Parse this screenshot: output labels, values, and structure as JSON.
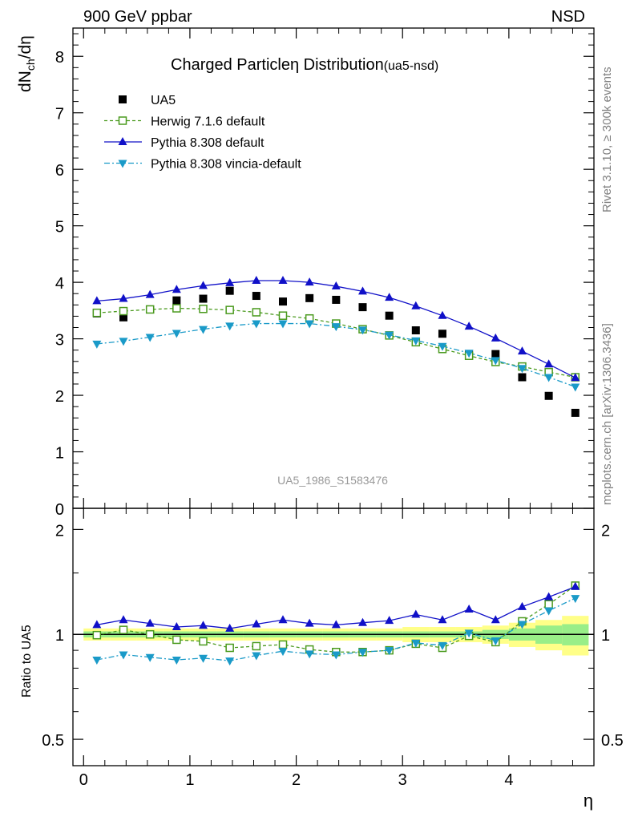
{
  "header": {
    "left": "900 GeV ppbar",
    "right": "NSD"
  },
  "side_labels": {
    "rivet": "Rivet 3.1.10, ≥ 300k events",
    "mcplots": "mcplots.cern.ch [arXiv:1306.3436]"
  },
  "chart_data": [
    {
      "type": "scatter",
      "title_main": "Charged Particle",
      "title_symbol": "η",
      "title_rest": " Distribution",
      "title_tag": "(ua5-nsd)",
      "watermark": "UA5_1986_S1583476",
      "ylabel_main": "dN",
      "ylabel_sub": "ch",
      "ylabel_rest": "/dη",
      "xlabel": "η",
      "xlim": [
        -0.1,
        4.8
      ],
      "ylim": [
        0,
        8.5
      ],
      "y_ticks": [
        "0",
        "1",
        "2",
        "3",
        "4",
        "5",
        "6",
        "7",
        "8"
      ],
      "x_ticks": [
        "0",
        "1",
        "2",
        "3",
        "4"
      ],
      "legend_position": "top-left",
      "x": [
        0.125,
        0.375,
        0.625,
        0.875,
        1.125,
        1.375,
        1.625,
        1.875,
        2.125,
        2.375,
        2.625,
        2.875,
        3.125,
        3.375,
        3.625,
        3.875,
        4.125,
        4.375,
        4.625
      ],
      "series": [
        {
          "name": "UA5",
          "marker": "square-filled",
          "color": "#000000",
          "line": "none",
          "values": [
            3.45,
            3.38,
            3.52,
            3.68,
            3.71,
            3.85,
            3.76,
            3.66,
            3.72,
            3.69,
            3.56,
            3.41,
            3.15,
            3.09,
            2.72,
            2.73,
            2.32,
            1.99,
            1.69
          ]
        },
        {
          "name": "Herwig 7.1.6 default",
          "marker": "square-open",
          "color": "#4a9a1e",
          "line": "dashed",
          "values": [
            3.46,
            3.49,
            3.52,
            3.54,
            3.53,
            3.51,
            3.47,
            3.41,
            3.36,
            3.27,
            3.17,
            3.06,
            2.94,
            2.82,
            2.7,
            2.59,
            2.51,
            2.41,
            2.32
          ]
        },
        {
          "name": "Pythia 8.308 default",
          "marker": "triangle-up",
          "color": "#1010c8",
          "line": "solid",
          "values": [
            3.67,
            3.71,
            3.78,
            3.87,
            3.94,
            3.99,
            4.03,
            4.03,
            4.0,
            3.93,
            3.84,
            3.73,
            3.58,
            3.41,
            3.22,
            3.01,
            2.78,
            2.55,
            2.31
          ]
        },
        {
          "name": "Pythia 8.308 vincia-default",
          "marker": "triangle-down",
          "color": "#1a9ac8",
          "line": "dashdot",
          "values": [
            2.91,
            2.96,
            3.03,
            3.1,
            3.17,
            3.23,
            3.27,
            3.27,
            3.27,
            3.22,
            3.16,
            3.07,
            2.97,
            2.87,
            2.75,
            2.62,
            2.48,
            2.32,
            2.15
          ]
        }
      ]
    },
    {
      "type": "scatter",
      "ylabel": "Ratio to UA5",
      "ylim": [
        0.42,
        2.3
      ],
      "y_scale": "log",
      "y_ticks": [
        "0.5",
        "1",
        "2"
      ],
      "x_ticks": [
        "0",
        "1",
        "2",
        "3",
        "4"
      ],
      "x": [
        0.125,
        0.375,
        0.625,
        0.875,
        1.125,
        1.375,
        1.625,
        1.875,
        2.125,
        2.375,
        2.625,
        2.875,
        3.125,
        3.375,
        3.625,
        3.875,
        4.125,
        4.375,
        4.625
      ],
      "band_inner": [
        0.02,
        0.02,
        0.02,
        0.02,
        0.02,
        0.02,
        0.02,
        0.02,
        0.02,
        0.02,
        0.02,
        0.02,
        0.02,
        0.02,
        0.02,
        0.03,
        0.04,
        0.06,
        0.07
      ],
      "band_outer": [
        0.04,
        0.04,
        0.04,
        0.04,
        0.04,
        0.04,
        0.04,
        0.04,
        0.04,
        0.04,
        0.04,
        0.04,
        0.05,
        0.05,
        0.05,
        0.06,
        0.08,
        0.1,
        0.13
      ],
      "series": [
        {
          "name": "Herwig 7.1.6 default",
          "marker": "square-open",
          "color": "#4a9a1e",
          "line": "dashed",
          "values": [
            0.995,
            1.03,
            1.0,
            0.965,
            0.955,
            0.915,
            0.925,
            0.935,
            0.905,
            0.89,
            0.89,
            0.9,
            0.94,
            0.915,
            0.99,
            0.95,
            1.09,
            1.22,
            1.38
          ]
        },
        {
          "name": "Pythia 8.308 default",
          "marker": "triangle-up",
          "color": "#1010c8",
          "line": "solid",
          "values": [
            1.065,
            1.1,
            1.075,
            1.05,
            1.06,
            1.04,
            1.07,
            1.1,
            1.075,
            1.065,
            1.08,
            1.095,
            1.14,
            1.1,
            1.18,
            1.1,
            1.2,
            1.28,
            1.37
          ]
        },
        {
          "name": "Pythia 8.308 vincia-default",
          "marker": "triangle-down",
          "color": "#1a9ac8",
          "line": "dashdot",
          "values": [
            0.845,
            0.875,
            0.86,
            0.845,
            0.855,
            0.84,
            0.87,
            0.895,
            0.88,
            0.875,
            0.89,
            0.9,
            0.945,
            0.93,
            1.01,
            0.96,
            1.07,
            1.17,
            1.27
          ]
        }
      ]
    }
  ]
}
